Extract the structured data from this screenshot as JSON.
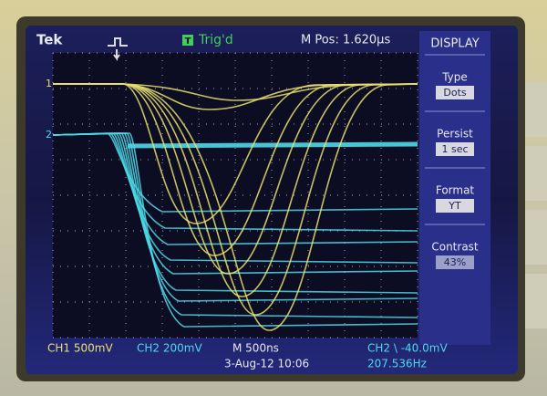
{
  "header": {
    "brand": "Tek",
    "trigger_icon": "T",
    "trigger_status": "Trig'd",
    "position": "M Pos: 1.620µs"
  },
  "menu": {
    "title": "DISPLAY",
    "items": [
      {
        "label": "Type",
        "value": "Dots"
      },
      {
        "label": "Persist",
        "value": "1 sec"
      },
      {
        "label": "Format",
        "value": "YT"
      },
      {
        "label": "Contrast",
        "value": "43%"
      }
    ]
  },
  "channels": {
    "ch1_marker": "1",
    "ch2_marker": "2"
  },
  "footer": {
    "ch1": "CH1 500mV",
    "ch2": "CH2 200mV",
    "timebase": "M 500ns",
    "trigger": "CH2 \\ -40.0mV",
    "date": "3-Aug-12 10:06",
    "frequency": "207.536Hz"
  }
}
